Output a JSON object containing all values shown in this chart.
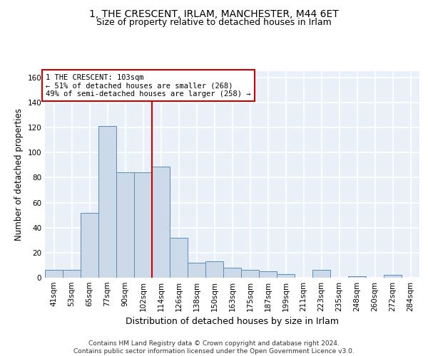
{
  "title": "1, THE CRESCENT, IRLAM, MANCHESTER, M44 6ET",
  "subtitle": "Size of property relative to detached houses in Irlam",
  "xlabel": "Distribution of detached houses by size in Irlam",
  "ylabel": "Number of detached properties",
  "bin_labels": [
    "41sqm",
    "53sqm",
    "65sqm",
    "77sqm",
    "90sqm",
    "102sqm",
    "114sqm",
    "126sqm",
    "138sqm",
    "150sqm",
    "163sqm",
    "175sqm",
    "187sqm",
    "199sqm",
    "211sqm",
    "223sqm",
    "235sqm",
    "248sqm",
    "260sqm",
    "272sqm",
    "284sqm"
  ],
  "bar_heights": [
    6,
    6,
    52,
    121,
    84,
    84,
    89,
    32,
    12,
    13,
    8,
    6,
    5,
    3,
    0,
    6,
    0,
    1,
    0,
    2,
    0
  ],
  "bar_color": "#ccd9e8",
  "bar_edge_color": "#5b8db8",
  "vline_x": 5.5,
  "vline_color": "#cc0000",
  "annotation_text": "1 THE CRESCENT: 103sqm\n← 51% of detached houses are smaller (268)\n49% of semi-detached houses are larger (258) →",
  "annotation_box_color": "#ffffff",
  "annotation_box_edge": "#cc0000",
  "yticks": [
    0,
    20,
    40,
    60,
    80,
    100,
    120,
    140,
    160
  ],
  "ylim": [
    0,
    165
  ],
  "footer": "Contains HM Land Registry data © Crown copyright and database right 2024.\nContains public sector information licensed under the Open Government Licence v3.0.",
  "background_color": "#eaf0f8",
  "grid_color": "#ffffff",
  "title_fontsize": 10,
  "subtitle_fontsize": 9,
  "xlabel_fontsize": 9,
  "ylabel_fontsize": 8.5,
  "tick_fontsize": 7.5,
  "footer_fontsize": 6.5
}
